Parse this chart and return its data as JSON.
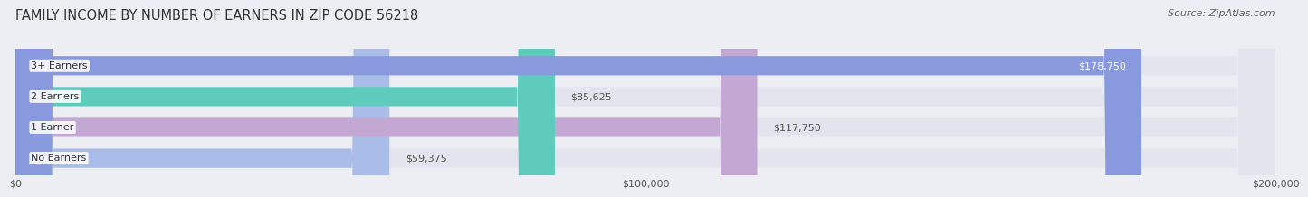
{
  "title": "FAMILY INCOME BY NUMBER OF EARNERS IN ZIP CODE 56218",
  "source": "Source: ZipAtlas.com",
  "categories": [
    "No Earners",
    "1 Earner",
    "2 Earners",
    "3+ Earners"
  ],
  "values": [
    59375,
    117750,
    85625,
    178750
  ],
  "bar_colors": [
    "#aabde8",
    "#c4a8d4",
    "#5ecbbc",
    "#8899dd"
  ],
  "bar_bg_color": "#e4e4ef",
  "value_labels": [
    "$59,375",
    "$117,750",
    "$85,625",
    "$178,750"
  ],
  "xlim": [
    0,
    200000
  ],
  "xticks": [
    0,
    100000,
    200000
  ],
  "xtick_labels": [
    "$0",
    "$100,000",
    "$200,000"
  ],
  "background_color": "#ededf4",
  "title_fontsize": 10.5,
  "source_fontsize": 8,
  "label_fontsize": 8,
  "value_fontsize": 8
}
